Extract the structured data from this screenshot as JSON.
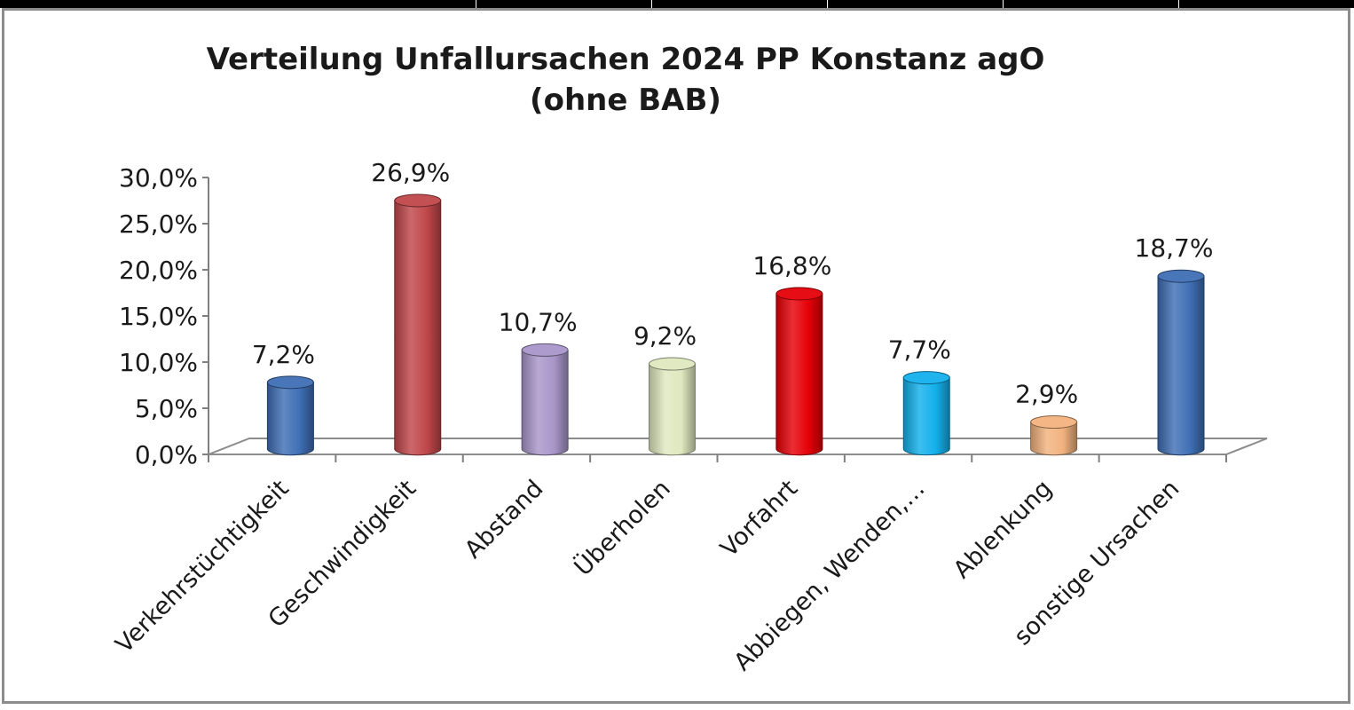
{
  "chart_data": {
    "type": "bar",
    "title_line1": "Verteilung Unfallursachen 2024 PP Konstanz agO",
    "title_line2": "(ohne BAB)",
    "xlabel": "",
    "ylabel": "",
    "ylim": [
      0,
      30
    ],
    "y_ticks": [
      {
        "value": 0,
        "label": "0,0%"
      },
      {
        "value": 5,
        "label": "5,0%"
      },
      {
        "value": 10,
        "label": "10,0%"
      },
      {
        "value": 15,
        "label": "15,0%"
      },
      {
        "value": 20,
        "label": "20,0%"
      },
      {
        "value": 25,
        "label": "25,0%"
      },
      {
        "value": 30,
        "label": "30,0%"
      }
    ],
    "categories": [
      "Verkehrstüchtigkeit",
      "Geschwindigkeit",
      "Abstand",
      "Überholen",
      "Vorfahrt",
      "Abbiegen, Wenden,…",
      "Ablenkung",
      "sonstige Ursachen"
    ],
    "values": [
      7.2,
      26.9,
      10.7,
      9.2,
      16.8,
      7.7,
      2.9,
      18.7
    ],
    "value_labels": [
      "7,2%",
      "26,9%",
      "10,7%",
      "9,2%",
      "16,8%",
      "7,7%",
      "2,9%",
      "18,7%"
    ],
    "colors": [
      "#3f6fb5",
      "#c0474a",
      "#a896c9",
      "#dfe8bf",
      "#e50008",
      "#13b0ec",
      "#f2b27e",
      "#3f6fb5"
    ],
    "grid": false,
    "legend": "none"
  }
}
